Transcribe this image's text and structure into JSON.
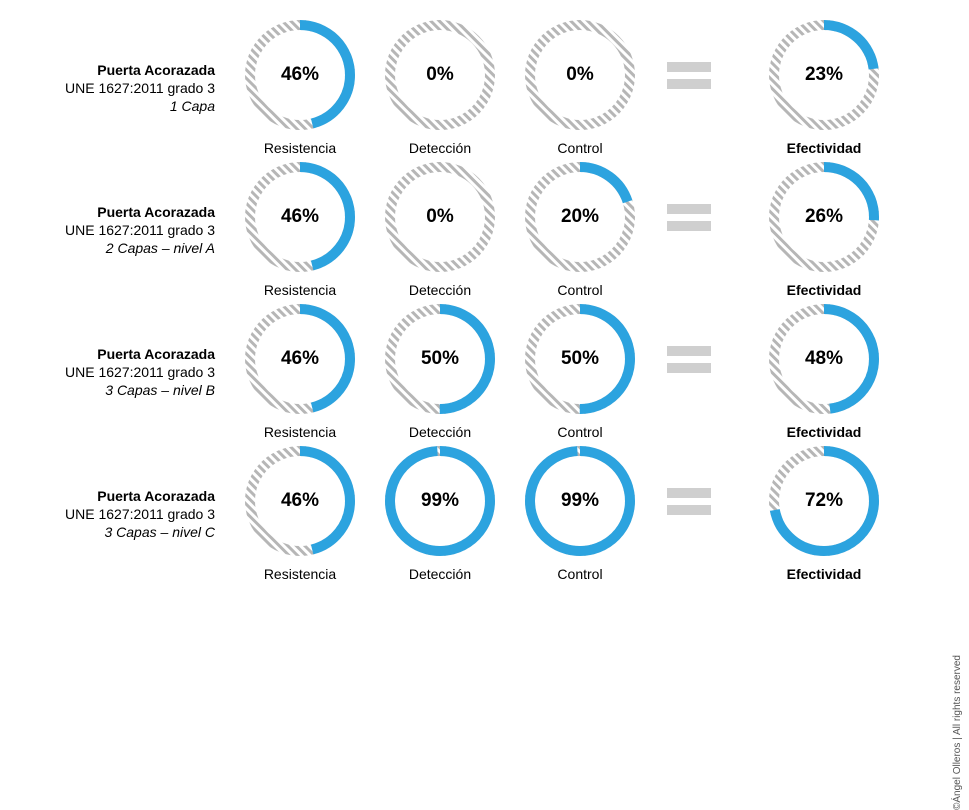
{
  "style": {
    "progress_color": "#2ca3df",
    "track_color": "#c9c9c9",
    "hatch_color": "#b6b6b6",
    "background": "#ffffff",
    "equals_color": "#cfcfcf",
    "donut_size": 110,
    "stroke_width": 10,
    "value_fontsize": 19,
    "caption_fontsize": 14
  },
  "captions": {
    "resistencia": "Resistencia",
    "deteccion": "Detección",
    "control": "Control",
    "efectividad": "Efectividad"
  },
  "copyright": "©Ángel Olleros | All rights reserved",
  "rows": [
    {
      "title": "Puerta Acorazada",
      "subtitle": "UNE 1627:2011 grado 3",
      "detail": "1 Capa",
      "resistencia": 46,
      "deteccion": 0,
      "control": 0,
      "efectividad": 23
    },
    {
      "title": "Puerta Acorazada",
      "subtitle": "UNE 1627:2011 grado 3",
      "detail": "2 Capas – nivel A",
      "resistencia": 46,
      "deteccion": 0,
      "control": 20,
      "efectividad": 26
    },
    {
      "title": "Puerta Acorazada",
      "subtitle": "UNE 1627:2011 grado 3",
      "detail": "3 Capas – nivel B",
      "resistencia": 46,
      "deteccion": 50,
      "control": 50,
      "efectividad": 48
    },
    {
      "title": "Puerta Acorazada",
      "subtitle": "UNE 1627:2011 grado 3",
      "detail": "3 Capas – nivel C",
      "resistencia": 46,
      "deteccion": 99,
      "control": 99,
      "efectividad": 72
    }
  ]
}
